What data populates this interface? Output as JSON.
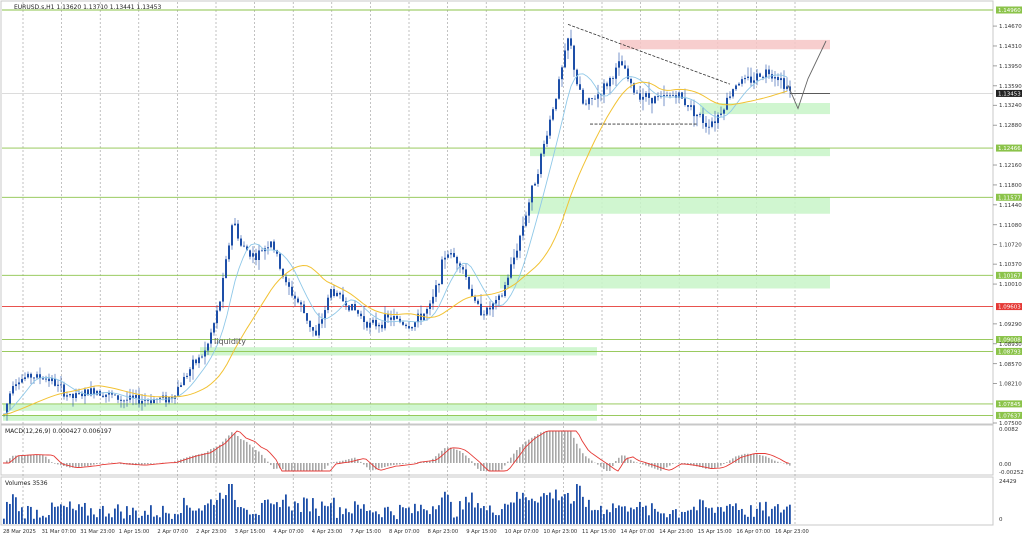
{
  "window": {
    "symbol_line": "EURUSD.s,H1  1.13620 1.13710 1.13441 1.13453"
  },
  "price_axis": {
    "labels": [
      "1.14670",
      "1.14310",
      "1.13950",
      "1.13590",
      "1.13240",
      "1.12880",
      "1.12160",
      "1.11800",
      "1.11440",
      "1.11080",
      "1.10720",
      "1.10370",
      "1.10010",
      "1.09290",
      "1.08930",
      "1.08570",
      "1.08210",
      "1.07500"
    ],
    "current_price": "1.13453"
  },
  "levels": [
    {
      "price": "1.14960",
      "color": "#8bc34a"
    },
    {
      "price": "1.12466",
      "color": "#8bc34a"
    },
    {
      "price": "1.11577",
      "color": "#8bc34a"
    },
    {
      "price": "1.10167",
      "color": "#8bc34a"
    },
    {
      "price": "1.09603",
      "color": "#e53935"
    },
    {
      "price": "1.09008",
      "color": "#8bc34a"
    },
    {
      "price": "1.08793",
      "color": "#8bc34a"
    },
    {
      "price": "1.07845",
      "color": "#8bc34a"
    },
    {
      "price": "1.07637",
      "color": "#8bc34a"
    }
  ],
  "annotations": {
    "liquidity_label": "liquidity"
  },
  "macd": {
    "label": "MACD(12,26,9) 0.000427 0.006197",
    "axis_labels": [
      "0.0082",
      "0.00",
      "-0.002526"
    ]
  },
  "volumes": {
    "label": "Volumes 3536",
    "axis_labels": [
      "24429",
      "0"
    ]
  },
  "time_axis": {
    "labels": [
      "28 Mar 2025",
      "31 Mar 07:00",
      "31 Mar 23:00",
      "1 Apr 15:00",
      "2 Apr 07:00",
      "2 Apr 23:00",
      "3 Apr 15:00",
      "4 Apr 07:00",
      "4 Apr 23:00",
      "7 Apr 15:00",
      "8 Apr 07:00",
      "8 Apr 23:00",
      "9 Apr 15:00",
      "10 Apr 07:00",
      "10 Apr 23:00",
      "11 Apr 15:00",
      "14 Apr 07:00",
      "14 Apr 23:00",
      "15 Apr 15:00",
      "16 Apr 07:00",
      "16 Apr 23:00"
    ]
  },
  "colors": {
    "bull_candle": "#1e4fa8",
    "bear_candle": "#1e4fa8",
    "level_green": "#8bc34a",
    "level_red": "#e53935",
    "zone_green": "#c8f5c8",
    "zone_red": "#f6c6c6",
    "ma_fast": "#8fc8e8",
    "ma_slow": "#f2c233",
    "macd_signal": "#e53935",
    "macd_hist": "#a8a8a8",
    "volume_bar": "#1e4fa8"
  }
}
